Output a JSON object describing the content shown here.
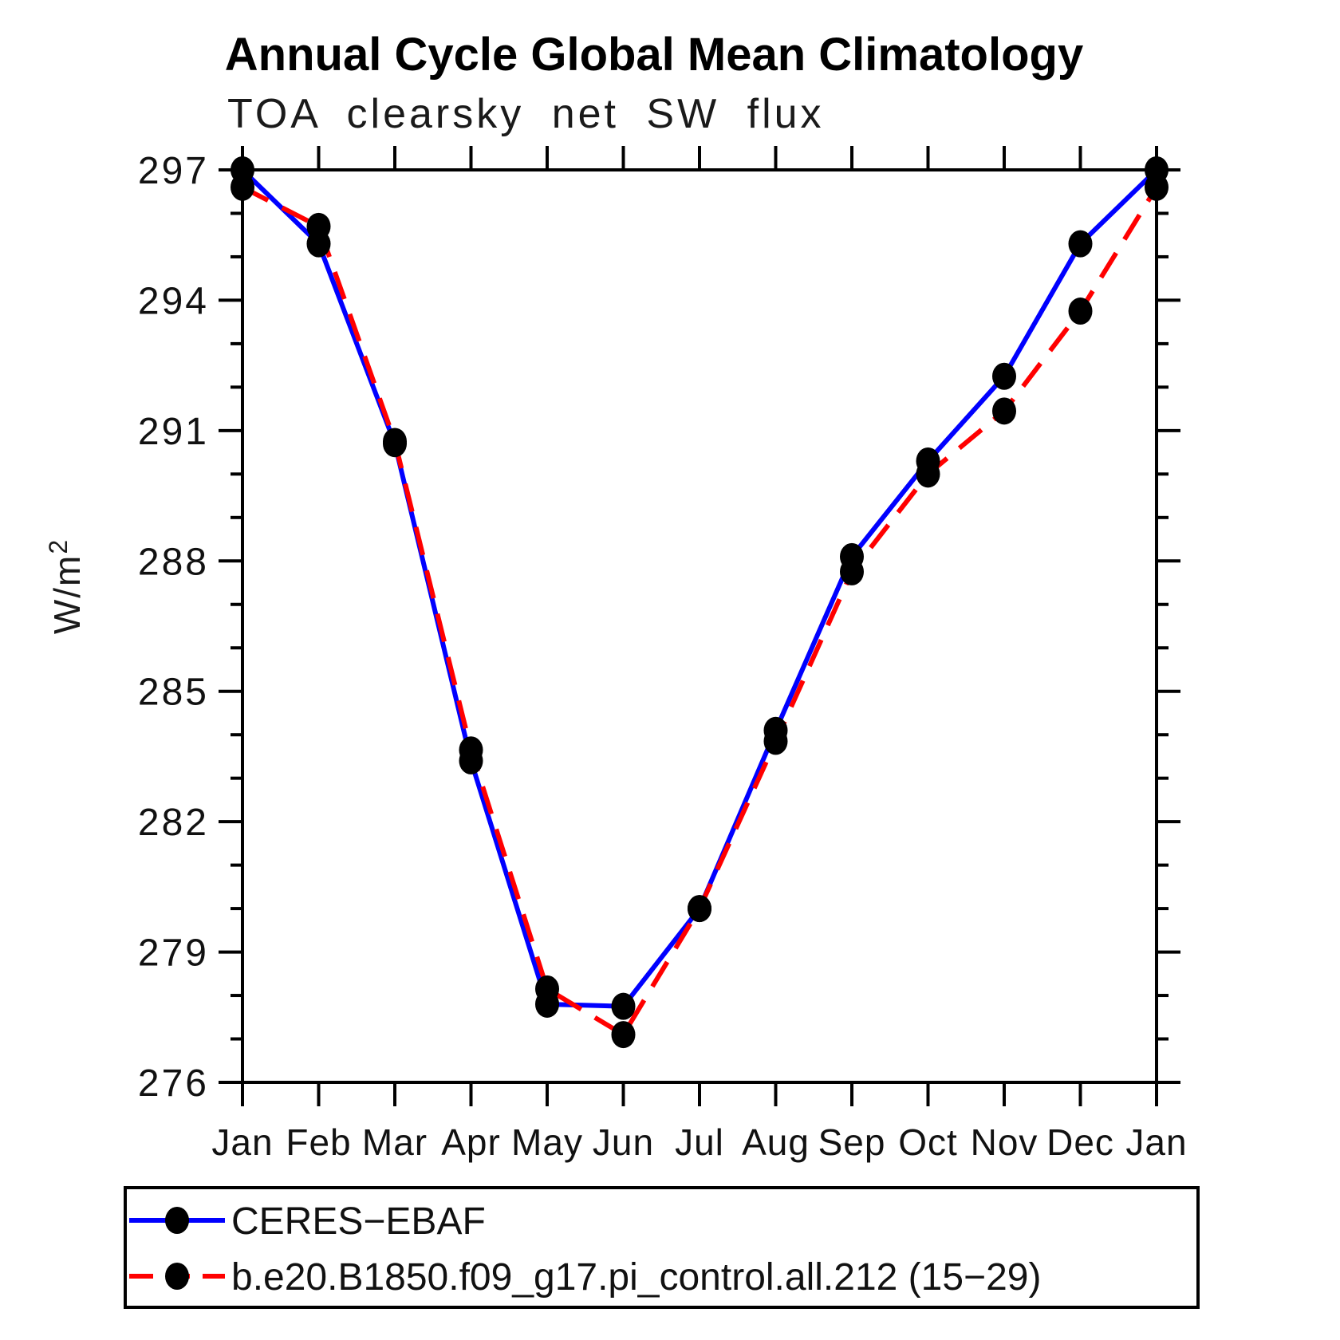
{
  "chart_data": {
    "type": "line",
    "title": "Annual Cycle Global Mean Climatology",
    "subtitle": "TOA clearsky net SW flux",
    "ylabel_base": "W/m",
    "ylabel_exp": "2",
    "x_tick_labels": [
      "Jan",
      "Feb",
      "Mar",
      "Apr",
      "May",
      "Jun",
      "Jul",
      "Aug",
      "Sep",
      "Oct",
      "Nov",
      "Dec",
      "Jan"
    ],
    "y_tick_labels": [
      276,
      279,
      282,
      285,
      288,
      291,
      294,
      297
    ],
    "ylim": [
      276,
      297
    ],
    "y_major_step": 3,
    "y_minor_step": 1,
    "grid": "off",
    "legend_position": "bottom-box",
    "marker_color": "#000000",
    "axis_color": "#000000",
    "series": [
      {
        "name": "CERES−EBAF",
        "color": "#0000ff",
        "style": "solid",
        "marker": "filled-circle",
        "values": [
          297.0,
          295.3,
          290.7,
          283.4,
          277.8,
          277.75,
          280.0,
          284.1,
          288.1,
          290.3,
          292.25,
          295.3,
          297.0
        ]
      },
      {
        "name": "b.e20.B1850.f09_g17.pi_control.all.212 (15−29)",
        "color": "#ff0000",
        "style": "dashed",
        "marker": "filled-circle",
        "values": [
          296.6,
          295.7,
          290.75,
          283.65,
          278.15,
          277.1,
          280.0,
          283.85,
          287.75,
          290.0,
          291.45,
          293.75,
          296.6
        ]
      }
    ]
  }
}
